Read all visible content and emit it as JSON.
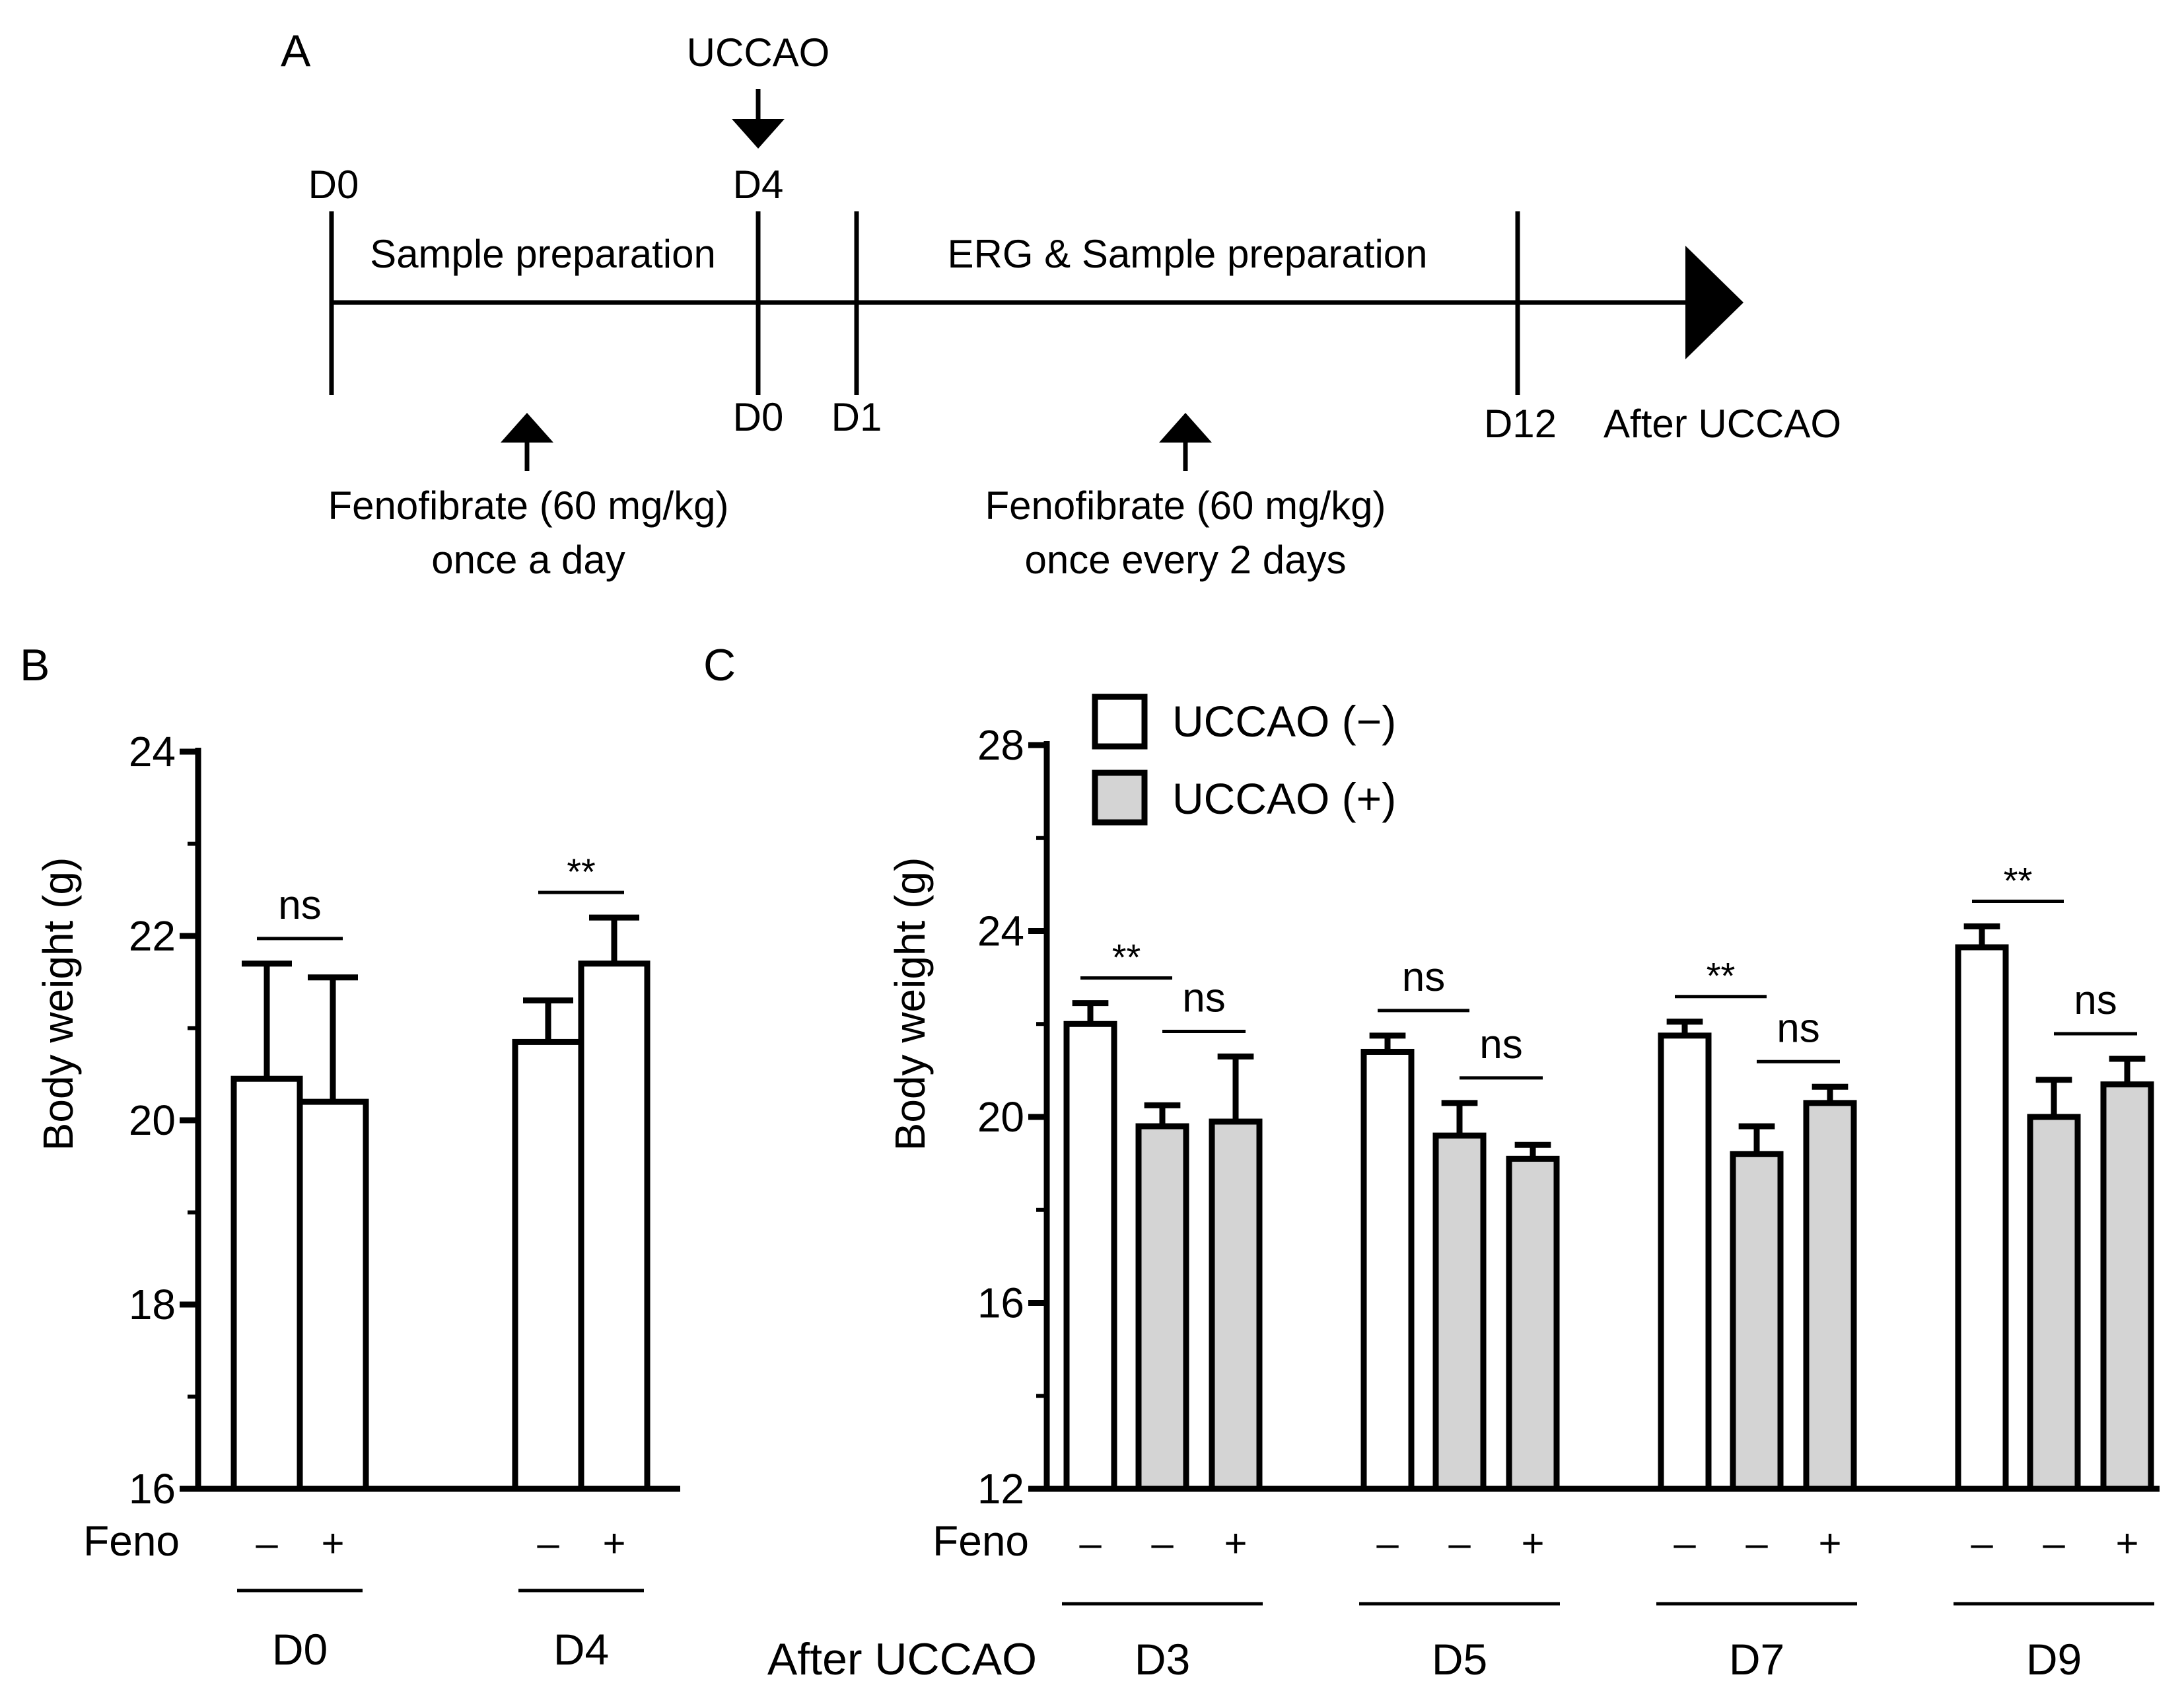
{
  "panel_a": {
    "panel_label": "A",
    "uccao_marker": "UCCAO",
    "top_day_labels": [
      "D0",
      "D4"
    ],
    "bottom_day_labels": [
      "D0",
      "D1",
      "D12"
    ],
    "after_label": "After UCCAO",
    "phase1_label": "Sample preparation",
    "phase2_label": "ERG  & Sample preparation",
    "dose1_line1": "Fenofibrate (60 mg/kg)",
    "dose1_line2": "once a day",
    "dose2_line1": "Fenofibrate (60 mg/kg)",
    "dose2_line2": "once every 2 days"
  },
  "chart_data": [
    {
      "panel_label": "B",
      "type": "bar",
      "title": "",
      "xlabel": "",
      "ylabel": "Body weight (g)",
      "ylim": [
        16,
        24
      ],
      "yticks": [
        "16",
        "18",
        "20",
        "22",
        "24"
      ],
      "treatment_row_label": "Feno",
      "groups": [
        {
          "label": "D0",
          "bars": [
            {
              "feno": "–",
              "uccao": "(–)",
              "value": 20.45,
              "error": 1.25
            },
            {
              "feno": "+",
              "uccao": "(–)",
              "value": 20.2,
              "error": 1.35
            }
          ],
          "comparisons": [
            "ns"
          ]
        },
        {
          "label": "D4",
          "bars": [
            {
              "feno": "–",
              "uccao": "(–)",
              "value": 20.85,
              "error": 0.45
            },
            {
              "feno": "+",
              "uccao": "(–)",
              "value": 21.7,
              "error": 0.5
            }
          ],
          "comparisons": [
            "**"
          ]
        }
      ]
    },
    {
      "panel_label": "C",
      "type": "bar",
      "title": "",
      "xlabel": "After UCCAO",
      "ylabel": "Body weight (g)",
      "ylim": [
        12,
        28
      ],
      "yticks": [
        "12",
        "16",
        "20",
        "24",
        "28"
      ],
      "treatment_row_label": "Feno",
      "group_axis_label": "After UCCAO",
      "legend": [
        {
          "name": "UCCAO (−)",
          "color": "#ffffff"
        },
        {
          "name": "UCCAO (+)",
          "color": "#d4d4d4"
        }
      ],
      "groups": [
        {
          "label": "D3",
          "bars": [
            {
              "feno": "–",
              "uccao": "(–)",
              "value": 22.0,
              "error": 0.45
            },
            {
              "feno": "–",
              "uccao": "(+)",
              "value": 19.8,
              "error": 0.45
            },
            {
              "feno": "+",
              "uccao": "(+)",
              "value": 19.9,
              "error": 1.4
            }
          ],
          "comparisons": [
            "**",
            "ns"
          ]
        },
        {
          "label": "D5",
          "bars": [
            {
              "feno": "–",
              "uccao": "(–)",
              "value": 21.4,
              "error": 0.35
            },
            {
              "feno": "–",
              "uccao": "(+)",
              "value": 19.6,
              "error": 0.7
            },
            {
              "feno": "+",
              "uccao": "(+)",
              "value": 19.1,
              "error": 0.3
            }
          ],
          "comparisons": [
            "ns",
            "ns"
          ]
        },
        {
          "label": "D7",
          "bars": [
            {
              "feno": "–",
              "uccao": "(–)",
              "value": 21.75,
              "error": 0.3
            },
            {
              "feno": "–",
              "uccao": "(+)",
              "value": 19.2,
              "error": 0.6
            },
            {
              "feno": "+",
              "uccao": "(+)",
              "value": 20.3,
              "error": 0.35
            }
          ],
          "comparisons": [
            "**",
            "ns"
          ]
        },
        {
          "label": "D9",
          "bars": [
            {
              "feno": "–",
              "uccao": "(–)",
              "value": 23.65,
              "error": 0.45
            },
            {
              "feno": "–",
              "uccao": "(+)",
              "value": 20.0,
              "error": 0.8
            },
            {
              "feno": "+",
              "uccao": "(+)",
              "value": 20.7,
              "error": 0.55
            }
          ],
          "comparisons": [
            "**",
            "ns"
          ]
        }
      ]
    }
  ]
}
